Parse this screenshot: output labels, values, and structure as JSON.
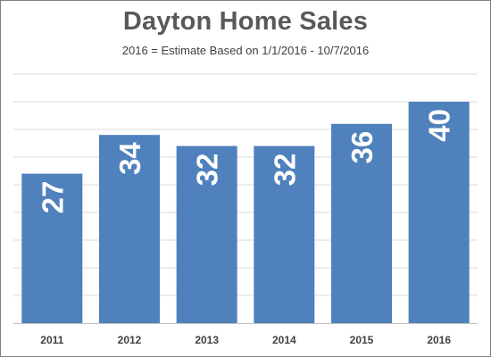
{
  "chart_data": {
    "type": "bar",
    "title": "Dayton Home Sales",
    "subtitle": "2016 = Estimate Based on 1/1/2016 - 10/7/2016",
    "categories": [
      "2011",
      "2012",
      "2013",
      "2014",
      "2015",
      "2016"
    ],
    "values": [
      27,
      34,
      32,
      32,
      36,
      40
    ],
    "data_labels": [
      "27",
      "34",
      "32",
      "32",
      "36",
      "40"
    ],
    "xlabel": "",
    "ylabel": "",
    "ylim": [
      0,
      40
    ],
    "grid": true,
    "legend": "none",
    "colors": {
      "bar": "#4f81bd",
      "grid": "#d9d9d9",
      "axis": "#bfbfbf"
    }
  }
}
